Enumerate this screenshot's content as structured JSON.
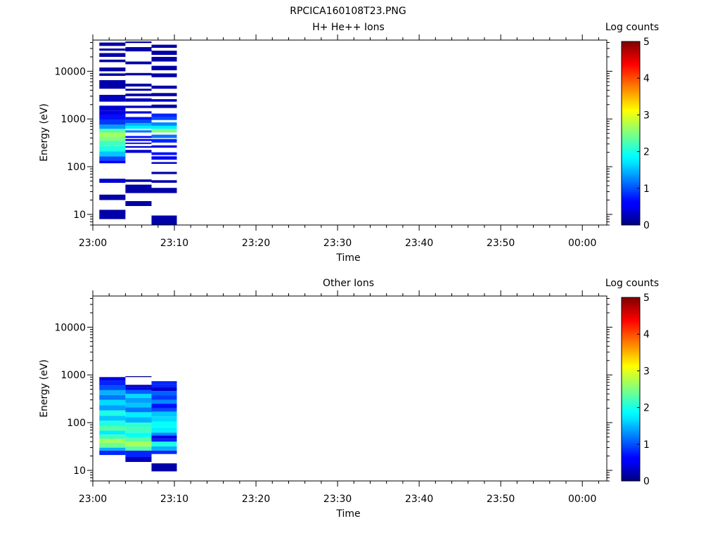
{
  "figure_title": "RPCICA160108T23.PNG",
  "chart_data": [
    {
      "type": "heatmap",
      "title": "H+ He++ Ions",
      "xlabel": "Time",
      "ylabel": "Energy (eV)",
      "x_ticks": [
        "23:00",
        "23:10",
        "23:20",
        "23:30",
        "23:40",
        "23:50",
        "00:00"
      ],
      "x_range_min": [
        0,
        63
      ],
      "y_scale": "log",
      "y_ticks": [
        "10",
        "100",
        "1000",
        "10000"
      ],
      "y_range": [
        6,
        45000
      ],
      "colorbar": {
        "label": "Log counts",
        "range": [
          0,
          5
        ],
        "ticks": [
          "0",
          "1",
          "2",
          "3",
          "4",
          "5"
        ],
        "colormap": "jet"
      },
      "columns": [
        {
          "t_start_min": 0.8,
          "t_end_min": 4.0,
          "cells": [
            [
              8,
              12.5,
              0.2
            ],
            [
              20,
              26,
              0.2
            ],
            [
              46,
              56,
              0.4
            ],
            [
              118,
              135,
              0.6
            ],
            [
              135,
              165,
              1.0
            ],
            [
              165,
              210,
              1.6
            ],
            [
              210,
              270,
              2.0
            ],
            [
              270,
              350,
              2.2
            ],
            [
              350,
              430,
              2.5
            ],
            [
              430,
              520,
              2.7
            ],
            [
              520,
              620,
              2.3
            ],
            [
              620,
              760,
              1.4
            ],
            [
              760,
              950,
              0.9
            ],
            [
              950,
              1200,
              0.7
            ],
            [
              1200,
              1500,
              0.5
            ],
            [
              1500,
              1900,
              0.4
            ],
            [
              2300,
              3200,
              0.3
            ],
            [
              4300,
              6500,
              0.2
            ],
            [
              8000,
              9000,
              0.2
            ],
            [
              10000,
              12000,
              0.2
            ],
            [
              15500,
              17500,
              0.2
            ],
            [
              20000,
              24000,
              0.2
            ],
            [
              27000,
              30000,
              0.2
            ],
            [
              34000,
              40000,
              0.2
            ]
          ]
        },
        {
          "t_start_min": 4.0,
          "t_end_min": 7.2,
          "cells": [
            [
              15,
              19,
              0.2
            ],
            [
              28,
              42,
              0.2
            ],
            [
              48,
              54,
              0.2
            ],
            [
              195,
              225,
              0.4
            ],
            [
              250,
              270,
              0.4
            ],
            [
              300,
              320,
              0.5
            ],
            [
              345,
              380,
              0.6
            ],
            [
              400,
              440,
              0.7
            ],
            [
              520,
              580,
              1.2
            ],
            [
              620,
              720,
              1.8
            ],
            [
              720,
              820,
              1.5
            ],
            [
              820,
              950,
              1.0
            ],
            [
              950,
              1100,
              0.7
            ],
            [
              1300,
              1450,
              0.4
            ],
            [
              1700,
              1900,
              0.3
            ],
            [
              2300,
              2700,
              0.3
            ],
            [
              3000,
              3400,
              0.2
            ],
            [
              3900,
              4300,
              0.2
            ],
            [
              4800,
              5500,
              0.2
            ],
            [
              8200,
              9200,
              0.2
            ],
            [
              14000,
              16000,
              0.2
            ],
            [
              26000,
              32000,
              0.2
            ],
            [
              39000,
              42000,
              0.2
            ]
          ]
        },
        {
          "t_start_min": 7.2,
          "t_end_min": 10.3,
          "cells": [
            [
              6,
              9.5,
              0.2
            ],
            [
              28,
              36,
              0.2
            ],
            [
              46,
              52,
              0.2
            ],
            [
              70,
              78,
              0.2
            ],
            [
              115,
              125,
              0.4
            ],
            [
              140,
              165,
              0.6
            ],
            [
              175,
              200,
              0.7
            ],
            [
              250,
              280,
              0.5
            ],
            [
              320,
              380,
              0.8
            ],
            [
              400,
              470,
              1.2
            ],
            [
              520,
              620,
              2.5
            ],
            [
              620,
              720,
              1.8
            ],
            [
              720,
              850,
              1.3
            ],
            [
              950,
              1100,
              1.0
            ],
            [
              1100,
              1300,
              0.8
            ],
            [
              1700,
              2000,
              0.2
            ],
            [
              2300,
              2600,
              0.3
            ],
            [
              3000,
              3500,
              0.2
            ],
            [
              4300,
              5000,
              0.2
            ],
            [
              7500,
              9000,
              0.2
            ],
            [
              10500,
              13000,
              0.2
            ],
            [
              16000,
              20000,
              0.2
            ],
            [
              22000,
              27000,
              0.2
            ],
            [
              31000,
              36000,
              0.2
            ]
          ]
        }
      ]
    },
    {
      "type": "heatmap",
      "title": "Other Ions",
      "xlabel": "Time",
      "ylabel": "Energy (eV)",
      "x_ticks": [
        "23:00",
        "23:10",
        "23:20",
        "23:30",
        "23:40",
        "23:50",
        "00:00"
      ],
      "x_range_min": [
        0,
        63
      ],
      "y_scale": "log",
      "y_ticks": [
        "10",
        "100",
        "1000",
        "10000"
      ],
      "y_range": [
        6,
        45000
      ],
      "colorbar": {
        "label": "Log counts",
        "range": [
          0,
          5
        ],
        "ticks": [
          "0",
          "1",
          "2",
          "3",
          "4",
          "5"
        ],
        "colormap": "jet"
      },
      "columns": [
        {
          "t_start_min": 0.8,
          "t_end_min": 4.0,
          "cells": [
            [
              21,
              26,
              0.8
            ],
            [
              26,
              30,
              1.5
            ],
            [
              30,
              38,
              2.4
            ],
            [
              38,
              46,
              2.7
            ],
            [
              46,
              56,
              2.2
            ],
            [
              56,
              68,
              1.8
            ],
            [
              68,
              85,
              2.3
            ],
            [
              85,
              110,
              2.0
            ],
            [
              110,
              140,
              1.6
            ],
            [
              140,
              180,
              2.0
            ],
            [
              180,
              230,
              1.4
            ],
            [
              230,
              300,
              1.7
            ],
            [
              300,
              380,
              1.2
            ],
            [
              380,
              480,
              1.5
            ],
            [
              480,
              600,
              1.0
            ],
            [
              600,
              750,
              0.8
            ],
            [
              750,
              900,
              0.5
            ]
          ]
        },
        {
          "t_start_min": 4.0,
          "t_end_min": 7.2,
          "cells": [
            [
              15,
              19,
              0.3
            ],
            [
              19,
              26,
              0.8
            ],
            [
              26,
              32,
              2.3
            ],
            [
              32,
              40,
              2.7
            ],
            [
              40,
              50,
              2.3
            ],
            [
              50,
              62,
              1.9
            ],
            [
              62,
              80,
              2.2
            ],
            [
              80,
              100,
              2.1
            ],
            [
              100,
              130,
              1.5
            ],
            [
              130,
              165,
              1.8
            ],
            [
              165,
              210,
              1.2
            ],
            [
              210,
              260,
              1.6
            ],
            [
              260,
              330,
              1.4
            ],
            [
              330,
              400,
              1.7
            ],
            [
              400,
              480,
              1.1
            ],
            [
              480,
              560,
              0.5
            ],
            [
              560,
              620,
              0.3
            ],
            [
              900,
              940,
              0.1
            ]
          ]
        },
        {
          "t_start_min": 7.2,
          "t_end_min": 10.3,
          "cells": [
            [
              9.5,
              14,
              0.2
            ],
            [
              22,
              26,
              0.8
            ],
            [
              26,
              32,
              1.5
            ],
            [
              32,
              40,
              2.0
            ],
            [
              40,
              46,
              0.8
            ],
            [
              46,
              54,
              0.5
            ],
            [
              54,
              62,
              1.3
            ],
            [
              62,
              80,
              1.8
            ],
            [
              80,
              105,
              1.9
            ],
            [
              105,
              135,
              1.7
            ],
            [
              135,
              170,
              1.6
            ],
            [
              170,
              200,
              1.0
            ],
            [
              200,
              250,
              0.7
            ],
            [
              250,
              300,
              1.3
            ],
            [
              300,
              370,
              0.9
            ],
            [
              370,
              460,
              1.1
            ],
            [
              460,
              560,
              0.4
            ],
            [
              560,
              640,
              0.8
            ],
            [
              640,
              740,
              0.8
            ]
          ]
        }
      ]
    }
  ]
}
